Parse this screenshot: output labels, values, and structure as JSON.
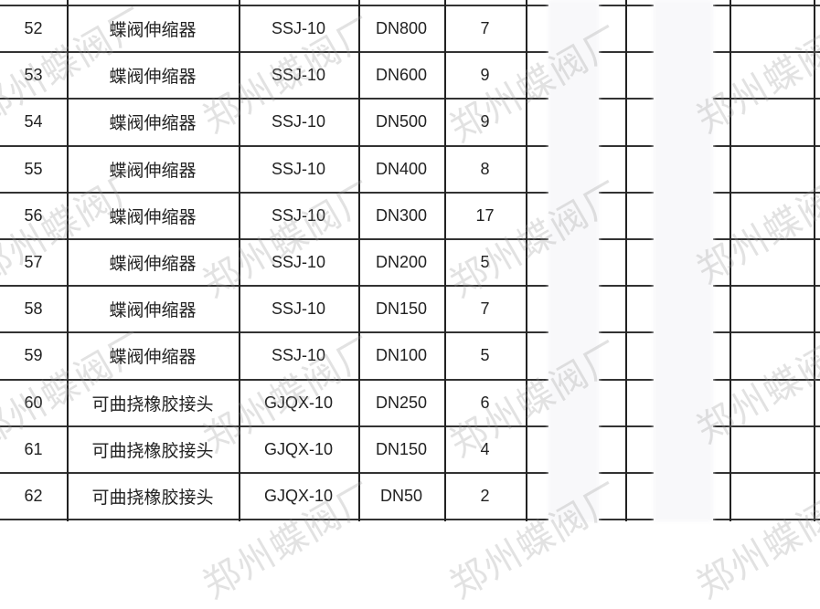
{
  "table": {
    "rows": [
      {
        "no": "52",
        "name": "蝶阀伸缩器",
        "model": "SSJ-10",
        "spec": "DN800",
        "qty": "7"
      },
      {
        "no": "53",
        "name": "蝶阀伸缩器",
        "model": "SSJ-10",
        "spec": "DN600",
        "qty": "9"
      },
      {
        "no": "54",
        "name": "蝶阀伸缩器",
        "model": "SSJ-10",
        "spec": "DN500",
        "qty": "9"
      },
      {
        "no": "55",
        "name": "蝶阀伸缩器",
        "model": "SSJ-10",
        "spec": "DN400",
        "qty": "8"
      },
      {
        "no": "56",
        "name": "蝶阀伸缩器",
        "model": "SSJ-10",
        "spec": "DN300",
        "qty": "17"
      },
      {
        "no": "57",
        "name": "蝶阀伸缩器",
        "model": "SSJ-10",
        "spec": "DN200",
        "qty": "5"
      },
      {
        "no": "58",
        "name": "蝶阀伸缩器",
        "model": "SSJ-10",
        "spec": "DN150",
        "qty": "7"
      },
      {
        "no": "59",
        "name": "蝶阀伸缩器",
        "model": "SSJ-10",
        "spec": "DN100",
        "qty": "5"
      },
      {
        "no": "60",
        "name": "可曲挠橡胶接头",
        "model": "GJQX-10",
        "spec": "DN250",
        "qty": "6"
      },
      {
        "no": "61",
        "name": "可曲挠橡胶接头",
        "model": "GJQX-10",
        "spec": "DN150",
        "qty": "4"
      },
      {
        "no": "62",
        "name": "可曲挠橡胶接头",
        "model": "GJQX-10",
        "spec": "DN50",
        "qty": "2"
      }
    ]
  },
  "watermark": "郑州蝶阀厂"
}
